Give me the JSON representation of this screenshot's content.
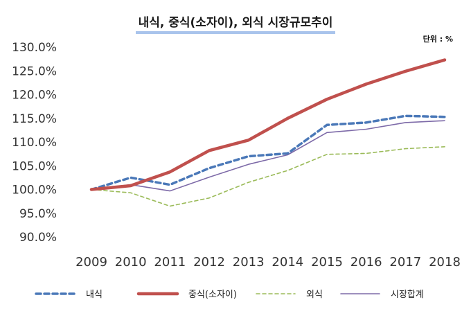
{
  "chart_data": {
    "type": "line",
    "title": "내식, 중식(소자이), 외식 시장규모추이",
    "unit_label": "단위 : %",
    "categories": [
      "2009",
      "2010",
      "2011",
      "2012",
      "2013",
      "2014",
      "2015",
      "2016",
      "2017",
      "2018"
    ],
    "ylim": [
      90,
      130
    ],
    "yticks": [
      "90.0%",
      "95.0%",
      "100.0%",
      "105.0%",
      "110.0%",
      "115.0%",
      "120.0%",
      "125.0%",
      "130.0%"
    ],
    "ytick_values": [
      90,
      95,
      100,
      105,
      110,
      115,
      120,
      125,
      130
    ],
    "grid": false,
    "legend_position": "bottom",
    "series": [
      {
        "name": "내식",
        "values": [
          100.0,
          102.5,
          101.0,
          104.5,
          107.0,
          107.6,
          113.6,
          114.1,
          115.5,
          115.3
        ],
        "color": "#4a78b8",
        "style": "dotted-thick"
      },
      {
        "name": "중식(소자이)",
        "values": [
          100.0,
          100.8,
          103.7,
          108.2,
          110.4,
          115.0,
          119.0,
          122.2,
          124.9,
          127.3
        ],
        "color": "#c0504d",
        "style": "solid-thick"
      },
      {
        "name": "외식",
        "values": [
          100.0,
          99.3,
          96.5,
          98.2,
          101.5,
          104.0,
          107.4,
          107.6,
          108.6,
          109.0
        ],
        "color": "#9bbb59",
        "style": "dashed-thin"
      },
      {
        "name": "시장합계",
        "values": [
          100.0,
          101.0,
          99.7,
          102.6,
          105.3,
          107.3,
          112.0,
          112.7,
          114.1,
          114.5
        ],
        "color": "#7d6aa8",
        "style": "solid-thin"
      }
    ]
  }
}
